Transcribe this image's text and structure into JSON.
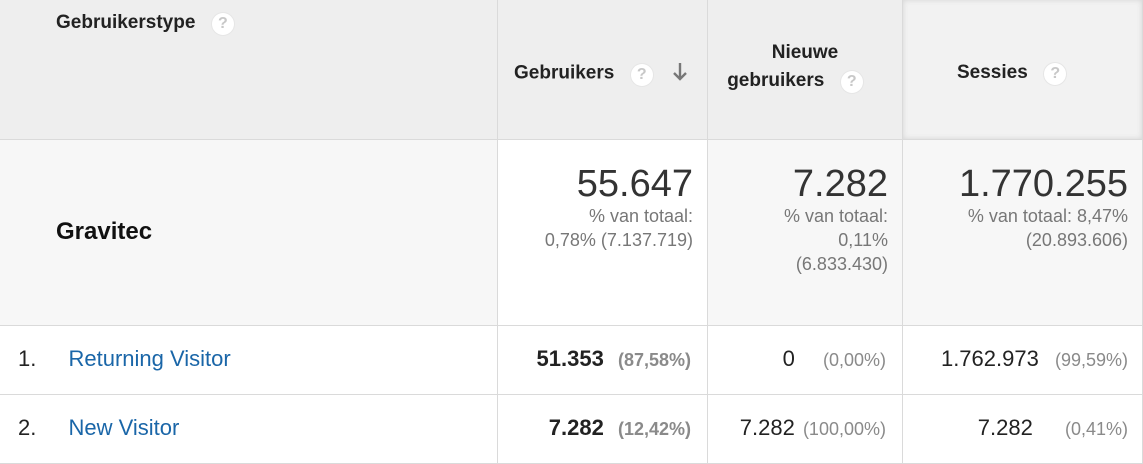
{
  "header": {
    "dimension_label": "Gebruikerstype",
    "col_users": "Gebruikers",
    "col_new_users_line1": "Nieuwe",
    "col_new_users_line2": "gebruikers",
    "col_sessions": "Sessies",
    "help_glyph": "?"
  },
  "summary": {
    "segment": "Gravitec",
    "users_total": "55.647",
    "users_pct_line1": "% van totaal:",
    "users_pct_line2": "0,78% (7.137.719)",
    "new_total": "7.282",
    "new_pct_line1": "% van totaal:",
    "new_pct_line2": "0,11%",
    "new_pct_line3": "(6.833.430)",
    "sessions_total": "1.770.255",
    "sessions_pct_line1": "% van totaal: 8,47%",
    "sessions_pct_line2": "(20.893.606)"
  },
  "rows": [
    {
      "index": "1.",
      "label": "Returning Visitor",
      "users": "51.353",
      "users_pct": "(87,58%)",
      "new_users": "0",
      "new_users_pct": "(0,00%)",
      "sessions": "1.762.973",
      "sessions_pct": "(99,59%)"
    },
    {
      "index": "2.",
      "label": "New Visitor",
      "users": "7.282",
      "users_pct": "(12,42%)",
      "new_users": "7.282",
      "new_users_pct": "(100,00%)",
      "sessions": "7.282",
      "sessions_pct": "(0,41%)"
    }
  ],
  "icons": {
    "help": "question-mark-circle-icon",
    "sort": "arrow-down-icon"
  },
  "colors": {
    "header_bg": "#eeeeee",
    "summary_bg": "#f7f7f7",
    "link": "#1a66a8",
    "muted": "#777777"
  }
}
